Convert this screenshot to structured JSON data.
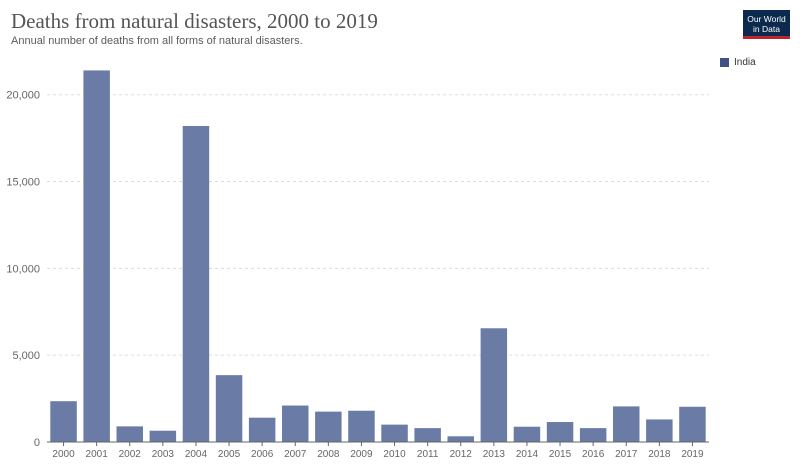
{
  "header": {
    "title": "Deaths from natural disasters, 2000 to 2019",
    "subtitle": "Annual number of deaths from all forms of natural disasters.",
    "logo_line1": "Our World",
    "logo_line2": "in Data"
  },
  "colors": {
    "bar": "#6a7ba6",
    "legend": "#3f5185",
    "grid": "#dddddd",
    "axis": "#666666",
    "tick_text": "#666666"
  },
  "chart_data": {
    "type": "bar",
    "title": "Deaths from natural disasters, 2000 to 2019",
    "subtitle": "Annual number of deaths from all forms of natural disasters.",
    "categories": [
      "2000",
      "2001",
      "2002",
      "2003",
      "2004",
      "2005",
      "2006",
      "2007",
      "2008",
      "2009",
      "2010",
      "2011",
      "2012",
      "2013",
      "2014",
      "2015",
      "2016",
      "2017",
      "2018",
      "2019"
    ],
    "series": [
      {
        "name": "India",
        "values": [
          2350,
          21400,
          900,
          650,
          18200,
          3850,
          1400,
          2100,
          1750,
          1800,
          1000,
          800,
          330,
          6550,
          880,
          1150,
          800,
          2050,
          1300,
          2030
        ]
      }
    ],
    "ylim": [
      0,
      22000
    ],
    "yticks": [
      0,
      5000,
      10000,
      15000,
      20000
    ],
    "ytick_labels": [
      "0",
      "5,000",
      "10,000",
      "15,000",
      "20,000"
    ],
    "grid": true,
    "legend": "top-right",
    "xlabel": "",
    "ylabel": ""
  }
}
